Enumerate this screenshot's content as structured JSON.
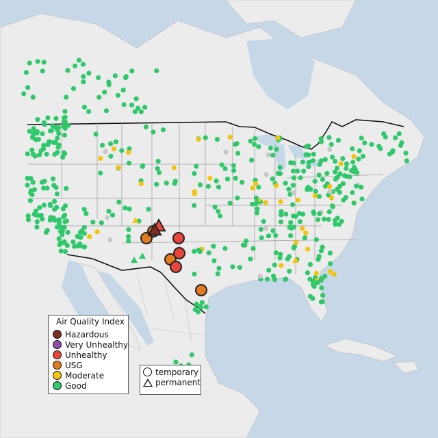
{
  "legend": {
    "title": "Air Quality Index",
    "categories": [
      {
        "label": "Hazardous",
        "color": "#7e2b22"
      },
      {
        "label": "Very Unhealthy",
        "color": "#8f4fa8"
      },
      {
        "label": "Unhealthy",
        "color": "#e8453c"
      },
      {
        "label": "USG",
        "color": "#e07b20"
      },
      {
        "label": "Moderate",
        "color": "#f2c40c"
      },
      {
        "label": "Good",
        "color": "#2fc86b"
      }
    ]
  },
  "monitor_types": {
    "temporary_label": "temporary",
    "permanent_label": "permanent"
  },
  "colors": {
    "water": "#c6d8e8",
    "land": "#ececec",
    "unreported": "#c8c8c8"
  }
}
